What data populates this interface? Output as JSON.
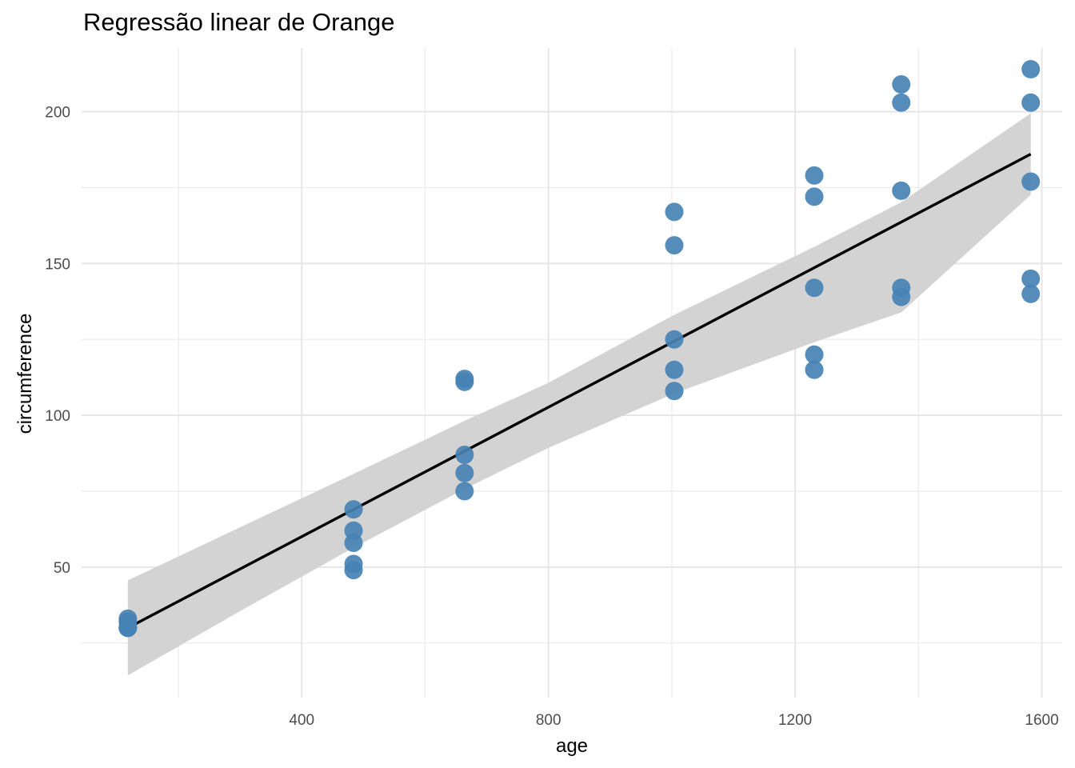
{
  "chart_data": {
    "type": "scatter",
    "title": "Regressão linear de Orange",
    "xlabel": "age",
    "ylabel": "circumference",
    "xlim": [
      43,
      1633
    ],
    "ylim": [
      7,
      221
    ],
    "x_ticks": [
      400,
      800,
      1200,
      1600
    ],
    "x_minor_ticks": [
      200,
      600,
      1000,
      1400
    ],
    "y_ticks": [
      50,
      100,
      150,
      200
    ],
    "y_minor_ticks": [
      25,
      75,
      125,
      175
    ],
    "grid": true,
    "legend": "none",
    "point_color": "#4682B4",
    "line_color": "#000000",
    "ribbon_color": "#D3D3D3",
    "points": [
      {
        "x": 118,
        "y": 30
      },
      {
        "x": 118,
        "y": 33
      },
      {
        "x": 118,
        "y": 30
      },
      {
        "x": 118,
        "y": 32
      },
      {
        "x": 118,
        "y": 30
      },
      {
        "x": 484,
        "y": 58
      },
      {
        "x": 484,
        "y": 69
      },
      {
        "x": 484,
        "y": 51
      },
      {
        "x": 484,
        "y": 62
      },
      {
        "x": 484,
        "y": 49
      },
      {
        "x": 664,
        "y": 87
      },
      {
        "x": 664,
        "y": 111
      },
      {
        "x": 664,
        "y": 75
      },
      {
        "x": 664,
        "y": 112
      },
      {
        "x": 664,
        "y": 81
      },
      {
        "x": 1004,
        "y": 115
      },
      {
        "x": 1004,
        "y": 156
      },
      {
        "x": 1004,
        "y": 108
      },
      {
        "x": 1004,
        "y": 167
      },
      {
        "x": 1004,
        "y": 125
      },
      {
        "x": 1231,
        "y": 120
      },
      {
        "x": 1231,
        "y": 172
      },
      {
        "x": 1231,
        "y": 115
      },
      {
        "x": 1231,
        "y": 179
      },
      {
        "x": 1231,
        "y": 142
      },
      {
        "x": 1372,
        "y": 142
      },
      {
        "x": 1372,
        "y": 203
      },
      {
        "x": 1372,
        "y": 139
      },
      {
        "x": 1372,
        "y": 209
      },
      {
        "x": 1372,
        "y": 174
      },
      {
        "x": 1582,
        "y": 145
      },
      {
        "x": 1582,
        "y": 203
      },
      {
        "x": 1582,
        "y": 140
      },
      {
        "x": 1582,
        "y": 214
      },
      {
        "x": 1582,
        "y": 177
      }
    ],
    "fit_line": {
      "x": [
        118,
        1582
      ],
      "y": [
        29.97,
        186.04
      ]
    },
    "confidence_band": {
      "x": [
        118,
        300,
        484,
        664,
        800,
        1004,
        1231,
        1372,
        1582
      ],
      "lower": [
        14.3,
        35.5,
        56.4,
        75.7,
        89.3,
        107.2,
        124.1,
        133.9,
        172.6
      ],
      "upper": [
        45.6,
        63.1,
        80.7,
        98.2,
        110.7,
        133.1,
        155.5,
        170.2,
        199.5
      ]
    }
  }
}
